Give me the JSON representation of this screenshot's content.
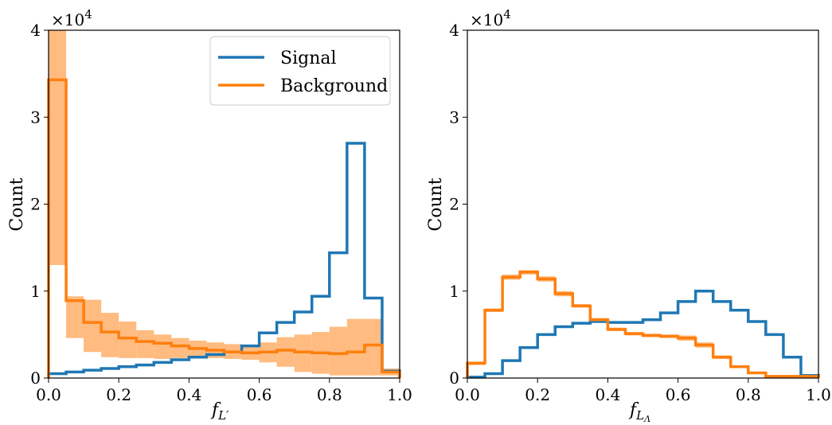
{
  "colors": {
    "signal": "#1f77b4",
    "background": "#ff7f0e",
    "band": "#ffbb80"
  },
  "chart_data": [
    {
      "type": "histogram",
      "ylabel": "Count",
      "xlabel_main": "f",
      "xlabel_sub": "L′",
      "y_multiplier": "×10",
      "y_multiplier_exp": "4",
      "xlim": [
        0,
        1
      ],
      "ylim": [
        0,
        40000
      ],
      "xticks": [
        "0.0",
        "0.2",
        "0.4",
        "0.6",
        "0.8",
        "1.0"
      ],
      "yticks": [
        "0",
        "1",
        "2",
        "3",
        "4"
      ],
      "bin_edges": [
        0,
        0.05,
        0.1,
        0.15,
        0.2,
        0.25,
        0.3,
        0.35,
        0.4,
        0.45,
        0.5,
        0.55,
        0.6,
        0.65,
        0.7,
        0.75,
        0.8,
        0.85,
        0.9,
        0.95,
        1.0
      ],
      "legend": {
        "position": "upper right",
        "entries": [
          "Signal",
          "Background"
        ]
      },
      "series": [
        {
          "name": "Signal",
          "color": "#1f77b4",
          "values": [
            500,
            700,
            900,
            1100,
            1300,
            1500,
            1800,
            2100,
            2400,
            2700,
            3000,
            3700,
            5200,
            6400,
            7600,
            9400,
            14400,
            27000,
            9200,
            800
          ]
        },
        {
          "name": "Background",
          "color": "#ff7f0e",
          "values": [
            34300,
            8900,
            6400,
            5300,
            4600,
            4200,
            4000,
            3700,
            3400,
            3200,
            3000,
            2900,
            3000,
            3200,
            3000,
            2900,
            2800,
            3000,
            3800,
            700
          ],
          "band_lower": [
            13000,
            4600,
            3000,
            2400,
            2300,
            2300,
            2200,
            2300,
            2300,
            2300,
            2200,
            2100,
            1800,
            1300,
            700,
            500,
            300,
            300,
            300,
            300
          ],
          "band_upper": [
            40000,
            9400,
            9000,
            7500,
            6500,
            5500,
            5000,
            4600,
            4300,
            4100,
            3900,
            3800,
            4100,
            4700,
            5000,
            5300,
            5900,
            6800,
            6800,
            1100
          ]
        }
      ]
    },
    {
      "type": "histogram",
      "ylabel": "Count",
      "xlabel_main": "f",
      "xlabel_sub": "L",
      "xlabel_subsub": "Λ",
      "y_multiplier": "×10",
      "y_multiplier_exp": "4",
      "xlim": [
        0,
        1
      ],
      "ylim": [
        0,
        40000
      ],
      "xticks": [
        "0.0",
        "0.2",
        "0.4",
        "0.6",
        "0.8",
        "1.0"
      ],
      "yticks": [
        "0",
        "1",
        "2",
        "3",
        "4"
      ],
      "bin_edges": [
        0,
        0.05,
        0.1,
        0.15,
        0.2,
        0.25,
        0.3,
        0.35,
        0.4,
        0.45,
        0.5,
        0.55,
        0.6,
        0.65,
        0.7,
        0.75,
        0.8,
        0.85,
        0.9,
        0.95,
        1.0
      ],
      "series": [
        {
          "name": "Signal",
          "color": "#1f77b4",
          "values": [
            100,
            500,
            2000,
            3500,
            5000,
            5900,
            6300,
            6500,
            6400,
            6400,
            6700,
            7500,
            8800,
            10000,
            8800,
            7800,
            6500,
            5000,
            2400,
            300
          ]
        },
        {
          "name": "Background",
          "color": "#ff7f0e",
          "values": [
            1700,
            7800,
            11600,
            12200,
            11400,
            9700,
            8300,
            6700,
            5600,
            5100,
            4900,
            4800,
            4600,
            3800,
            2400,
            1300,
            600,
            200,
            200,
            200
          ],
          "band_lower": [
            1500,
            7600,
            11300,
            11900,
            11100,
            9400,
            8100,
            6500,
            5400,
            4900,
            4700,
            4600,
            4300,
            3500,
            2200,
            1150,
            500,
            150,
            150,
            150
          ],
          "band_upper": [
            1900,
            8000,
            11900,
            12400,
            11700,
            10000,
            8500,
            6900,
            5800,
            5300,
            5100,
            5000,
            4900,
            4100,
            2600,
            1450,
            700,
            250,
            250,
            250
          ]
        }
      ]
    }
  ]
}
